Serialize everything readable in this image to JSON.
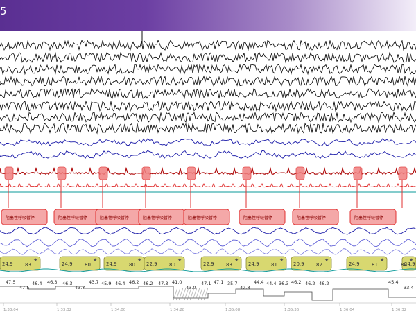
{
  "header": {
    "title": "5"
  },
  "colors": {
    "eeg": "#111111",
    "blue": "#1a1aa8",
    "ecg": "#b01010",
    "red_marker": "#e03030",
    "resp": "#6060d8",
    "spo2_bubble": "#d8d870",
    "teal": "#0a9a9a",
    "lower_light": "#7a7ae0"
  },
  "apnea_label": "阻塞性呼吸暂停",
  "spo2_events": [
    {
      "a": "24.9",
      "b": "83"
    },
    {
      "a": "24.9",
      "b": "80"
    },
    {
      "a": "24.9",
      "b": "80"
    },
    {
      "a": "22.9",
      "b": "80"
    },
    {
      "a": "22.9",
      "b": "83"
    },
    {
      "a": "24.9",
      "b": "81"
    },
    {
      "a": "20.9",
      "b": "82"
    },
    {
      "a": "24.9",
      "b": "81"
    },
    {
      "a": "24.9",
      "b": "80"
    }
  ],
  "hr_values": [
    "47.5",
    "47.5",
    "46.4",
    "46.3",
    "46.3",
    "43.7",
    "43.7",
    "45.9",
    "46.4",
    "46.2",
    "46.2",
    "47.3",
    "41.0",
    "43.0",
    "47.1",
    "47.1",
    "35.7",
    "42.8",
    "44.4",
    "44.4",
    "36.3",
    "46.2",
    "46.2",
    "46.2",
    "45.4",
    "33.4"
  ],
  "time_labels": [
    "1:33:04",
    "1:33:32",
    "1:34:00",
    "1:34:28",
    "1:35:08",
    "1:35:36",
    "1:36:04",
    "1:36:32"
  ]
}
